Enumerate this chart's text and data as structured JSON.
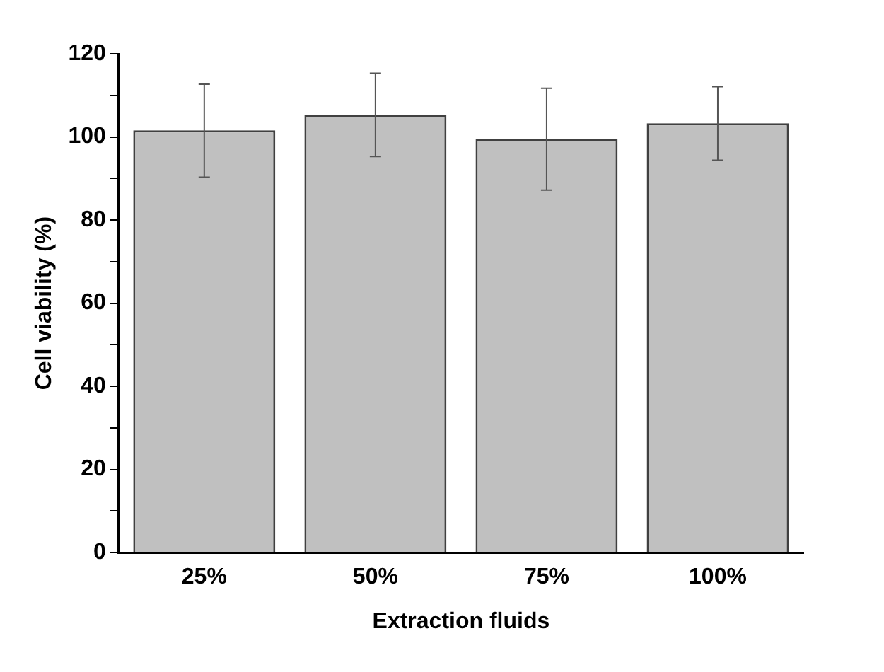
{
  "chart_data": {
    "type": "bar",
    "xlabel": "Extraction fluids",
    "ylabel": "Cell viability (%)",
    "categories": [
      "25%",
      "50%",
      "75%",
      "100%"
    ],
    "values": [
      101.6,
      105.3,
      99.5,
      103.3
    ],
    "errors": [
      [
        90.3,
        112.7
      ],
      [
        95.3,
        115.3
      ],
      [
        87.2,
        111.7
      ],
      [
        94.4,
        112.1
      ]
    ],
    "color": "#c0c0c0",
    "ylim": [
      0,
      120
    ],
    "yticks": [
      0,
      {
        "value": 10,
        "label": null
      },
      20,
      {
        "value": 30,
        "label": null
      },
      40,
      {
        "value": 50,
        "label": null
      },
      60,
      {
        "value": 70,
        "label": null
      },
      80,
      {
        "value": 90,
        "label": null
      },
      100,
      {
        "value": 110,
        "label": null
      },
      120
    ],
    "grid": false,
    "legend": false
  }
}
